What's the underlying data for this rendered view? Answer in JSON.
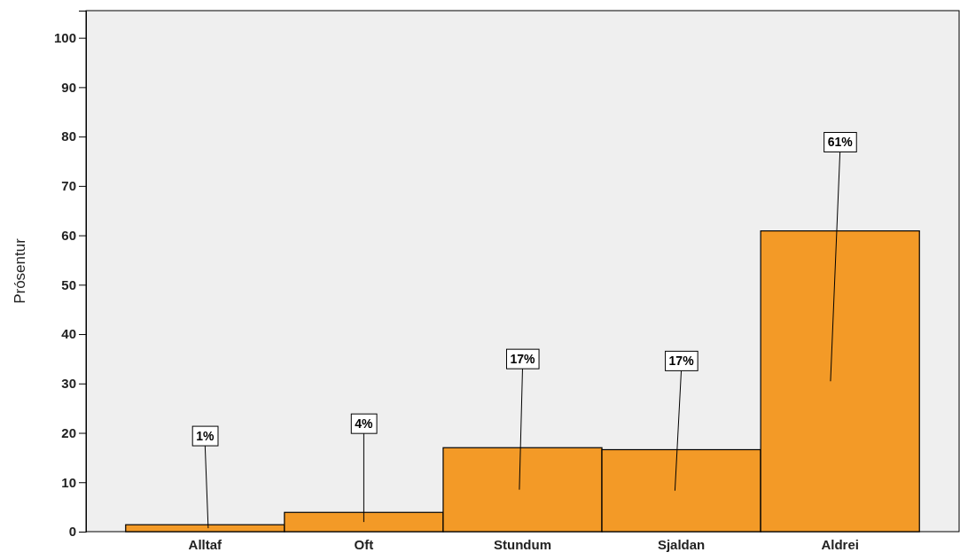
{
  "chart_data": {
    "type": "bar",
    "ylabel": "Prósentur",
    "categories": [
      "Alltaf",
      "Oft",
      "Stundum",
      "Sjaldan",
      "Aldrei"
    ],
    "values": [
      1.4,
      3.9,
      17,
      16.6,
      60.9
    ],
    "value_labels": [
      "1%",
      "4%",
      "17%",
      "17%",
      "61%"
    ],
    "color": "#f39a27",
    "ylim": [
      0,
      105.5
    ],
    "yticks": [
      0,
      10,
      20,
      30,
      40,
      50,
      60,
      70,
      80,
      90,
      100
    ],
    "grid": false
  }
}
